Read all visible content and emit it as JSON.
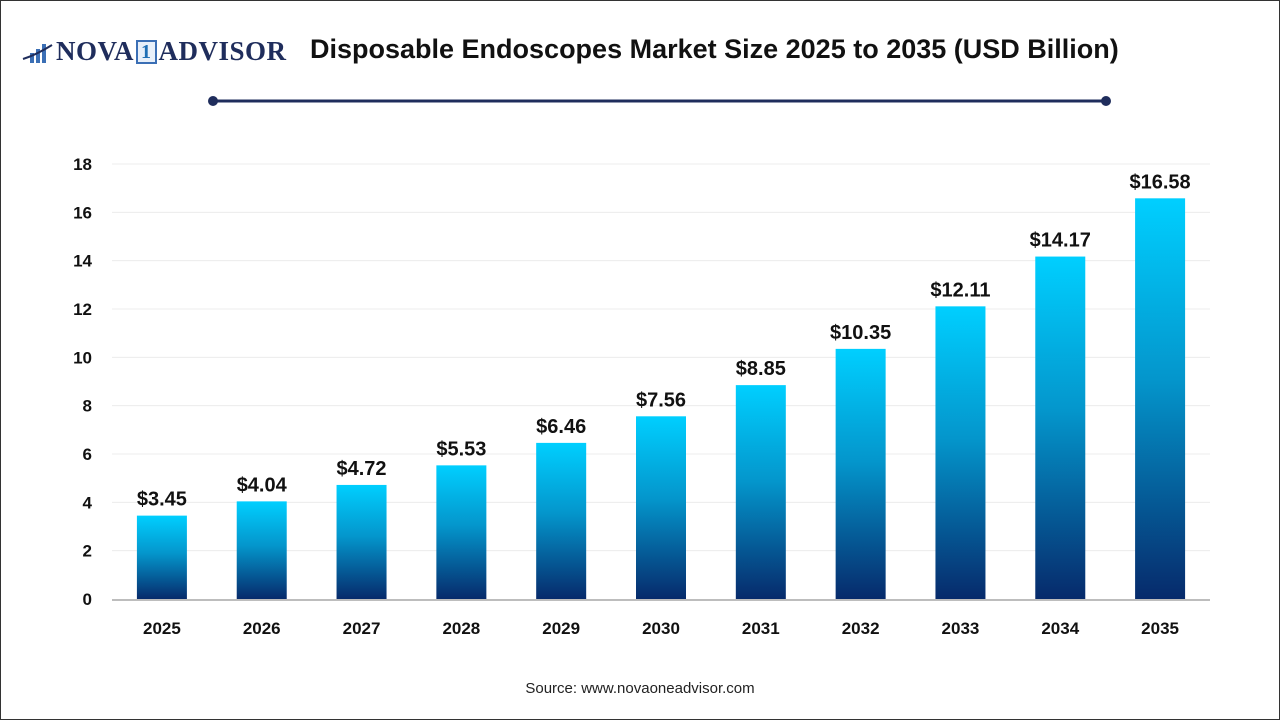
{
  "logo": {
    "text_left": "NOVA",
    "text_mid": "1",
    "text_right": "ADVISOR"
  },
  "title": "Disposable Endoscopes Market Size 2025 to 2035 (USD Billion)",
  "source": "Source: www.novaoneadvisor.com",
  "colors": {
    "bar_top": "#00cfff",
    "bar_bottom": "#062a6b",
    "title_rule": "#1f2d5c"
  },
  "chart_data": {
    "type": "bar",
    "title": "Disposable Endoscopes Market Size 2025 to 2035 (USD Billion)",
    "categories": [
      "2025",
      "2026",
      "2027",
      "2028",
      "2029",
      "2030",
      "2031",
      "2032",
      "2033",
      "2034",
      "2035"
    ],
    "values": [
      3.45,
      4.04,
      4.72,
      5.53,
      6.46,
      7.56,
      8.85,
      10.35,
      12.11,
      14.17,
      16.58
    ],
    "data_labels": [
      "$3.45",
      "$4.04",
      "$4.72",
      "$5.53",
      "$6.46",
      "$7.56",
      "$8.85",
      "$10.35",
      "$12.11",
      "$14.17",
      "$16.58"
    ],
    "yticks": [
      0,
      2,
      4,
      6,
      8,
      10,
      12,
      14,
      16,
      18
    ],
    "ylim": [
      0,
      18
    ],
    "xlabel": "",
    "ylabel": "",
    "grid": true,
    "legend": "none"
  }
}
